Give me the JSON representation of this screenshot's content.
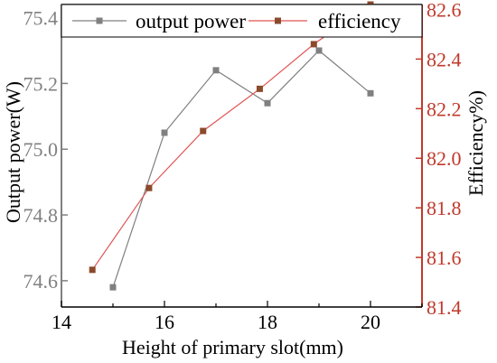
{
  "chart_data": {
    "type": "line",
    "xlabel": "Height of primary slot(mm)",
    "ylabel_left": "Output power(W)",
    "ylabel_right": "Efficiency%)",
    "xlim": [
      14,
      21
    ],
    "ylim_left": [
      74.52,
      75.44
    ],
    "ylim_right": [
      81.4,
      82.62
    ],
    "x_ticks": [
      "14",
      "16",
      "18",
      "20"
    ],
    "y_left_ticks": [
      "74.6",
      "74.8",
      "75.0",
      "75.2",
      "75.4"
    ],
    "y_right_ticks": [
      "81.4",
      "81.6",
      "81.8",
      "82.0",
      "82.2",
      "82.4",
      "82.6"
    ],
    "legend_position": "top",
    "series": [
      {
        "name": "output power",
        "axis": "left",
        "color": "#808080",
        "marker": "square",
        "x": [
          15,
          16,
          17,
          18,
          19,
          20
        ],
        "y": [
          74.58,
          75.05,
          75.24,
          75.14,
          75.3,
          75.17
        ]
      },
      {
        "name": "efficiency",
        "axis": "right",
        "color": "#e05555",
        "marker_color": "#8b4a2b",
        "marker": "square",
        "x": [
          14.6,
          15.7,
          16.75,
          17.85,
          18.9,
          20.0
        ],
        "y": [
          81.55,
          81.88,
          82.11,
          82.28,
          82.46,
          82.62
        ]
      }
    ],
    "axis_colors": {
      "left": "#808080",
      "right": "#c0392b",
      "bottom": "#000000"
    }
  }
}
